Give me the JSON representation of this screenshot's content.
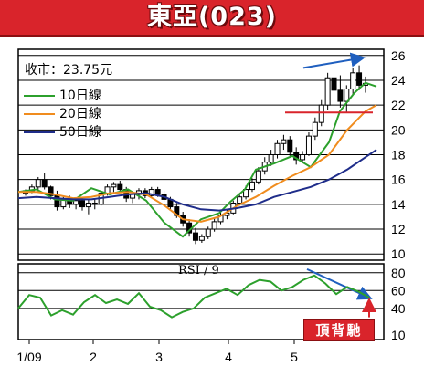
{
  "title": "東亞(023)",
  "price_label": "收市：23.75元",
  "badge": "頂背馳",
  "legend": [
    {
      "label": "10日線",
      "color": "#2ca02c"
    },
    {
      "label": "20日線",
      "color": "#f08c1e"
    },
    {
      "label": "50日線",
      "color": "#1f2d8a"
    }
  ],
  "rsi_label": "RSI / 9",
  "colors": {
    "title_bg": "#d9242b",
    "candle": "#000000",
    "resistance": "#d9242b",
    "trend_arrow": "#1f5fbf",
    "rsi_line": "#2ca02c"
  },
  "chart_data": [
    {
      "type": "candlestick",
      "x_tick_labels": [
        "1/09",
        "2",
        "3",
        "4",
        "5"
      ],
      "y_ticks": [
        10,
        12,
        14,
        16,
        18,
        20,
        22,
        24,
        26
      ],
      "ylim": [
        9.5,
        26.5
      ],
      "grid": "horizontal",
      "last_close": 23.75,
      "resistance_level": 21.4,
      "series": [
        {
          "name": "10日線",
          "color": "#2ca02c",
          "x": [
            0,
            5,
            10,
            15,
            20,
            25,
            30,
            35,
            40,
            45,
            50,
            55,
            58,
            62,
            65,
            70,
            75,
            80,
            85,
            88,
            92,
            95,
            98
          ],
          "y": [
            15.0,
            15.2,
            14.4,
            14.3,
            15.3,
            14.8,
            15.2,
            14.3,
            12.5,
            11.4,
            12.8,
            13.3,
            14.2,
            15.2,
            16.8,
            17.3,
            17.9,
            17.0,
            19.0,
            21.5,
            23.0,
            23.8,
            23.5
          ]
        },
        {
          "name": "20日線",
          "color": "#f08c1e",
          "x": [
            0,
            5,
            10,
            15,
            20,
            25,
            30,
            35,
            40,
            45,
            50,
            55,
            60,
            65,
            70,
            75,
            80,
            85,
            90,
            95,
            98
          ],
          "y": [
            15.0,
            15.0,
            14.8,
            14.5,
            14.6,
            14.9,
            15.0,
            14.8,
            13.9,
            12.8,
            12.6,
            13.0,
            13.9,
            14.6,
            15.5,
            16.3,
            17.0,
            18.0,
            20.0,
            21.5,
            22.0
          ]
        },
        {
          "name": "50日線",
          "color": "#1f2d8a",
          "x": [
            0,
            5,
            10,
            15,
            20,
            25,
            30,
            35,
            40,
            45,
            50,
            55,
            60,
            65,
            70,
            75,
            80,
            85,
            90,
            95,
            98
          ],
          "y": [
            14.5,
            14.6,
            14.5,
            14.4,
            14.4,
            14.6,
            14.8,
            14.9,
            14.6,
            14.0,
            13.6,
            13.5,
            13.7,
            14.0,
            14.6,
            15.0,
            15.4,
            16.0,
            16.8,
            17.8,
            18.4
          ]
        }
      ],
      "candles": [
        [
          0,
          14.9,
          15.2,
          14.7,
          15.1
        ],
        [
          1.4,
          15.1,
          15.6,
          14.9,
          15.4
        ],
        [
          2.8,
          15.4,
          16.2,
          15.2,
          16.0
        ],
        [
          4.2,
          16.0,
          16.5,
          15.2,
          15.4
        ],
        [
          5.6,
          15.4,
          15.5,
          14.4,
          14.7
        ],
        [
          7,
          14.7,
          15.1,
          13.5,
          13.8
        ],
        [
          8.4,
          13.8,
          14.6,
          13.6,
          14.4
        ],
        [
          9.8,
          14.4,
          14.7,
          13.7,
          14.0
        ],
        [
          11.2,
          14.0,
          14.5,
          13.6,
          14.3
        ],
        [
          12.6,
          14.3,
          14.6,
          13.5,
          13.8
        ],
        [
          14,
          13.8,
          14.4,
          13.2,
          14.1
        ],
        [
          15.4,
          14.1,
          14.5,
          13.6,
          14.0
        ],
        [
          16.8,
          14.0,
          15.1,
          13.9,
          14.9
        ],
        [
          18.2,
          14.9,
          15.6,
          14.7,
          15.4
        ],
        [
          19.6,
          15.4,
          15.8,
          15.0,
          15.6
        ],
        [
          21,
          15.6,
          15.9,
          15.1,
          15.2
        ],
        [
          22.4,
          15.2,
          15.4,
          14.2,
          14.5
        ],
        [
          23.8,
          14.5,
          15.0,
          14.1,
          14.8
        ],
        [
          25.2,
          14.8,
          15.3,
          14.4,
          15.1
        ],
        [
          26.6,
          15.1,
          15.3,
          14.5,
          14.7
        ],
        [
          28,
          14.7,
          15.4,
          14.6,
          15.2
        ],
        [
          29.4,
          15.2,
          15.4,
          14.6,
          14.8
        ],
        [
          30.8,
          14.8,
          15.1,
          14.2,
          14.4
        ],
        [
          32.2,
          14.4,
          14.6,
          13.6,
          13.8
        ],
        [
          33.6,
          13.8,
          14.1,
          12.9,
          13.1
        ],
        [
          35,
          13.1,
          13.4,
          12.2,
          12.5
        ],
        [
          36.4,
          12.5,
          12.8,
          11.4,
          11.7
        ],
        [
          37.8,
          11.7,
          12.1,
          10.8,
          11.1
        ],
        [
          39.2,
          11.1,
          11.6,
          10.9,
          11.4
        ],
        [
          40.6,
          11.4,
          12.2,
          11.2,
          12.0
        ],
        [
          42,
          12.0,
          12.9,
          11.8,
          12.6
        ],
        [
          43.4,
          12.6,
          13.4,
          12.4,
          13.1
        ],
        [
          44.8,
          13.1,
          13.6,
          12.8,
          13.3
        ],
        [
          46.2,
          13.3,
          14.3,
          13.2,
          14.1
        ],
        [
          47.6,
          14.1,
          14.9,
          13.9,
          14.6
        ],
        [
          49,
          14.6,
          15.5,
          14.4,
          15.2
        ],
        [
          50.4,
          15.2,
          16.1,
          15.0,
          15.8
        ],
        [
          51.8,
          15.8,
          17.0,
          15.6,
          16.7
        ],
        [
          53.2,
          16.7,
          17.8,
          16.4,
          17.4
        ],
        [
          54.6,
          17.4,
          18.4,
          17.1,
          18.0
        ],
        [
          56,
          18.0,
          19.2,
          17.7,
          18.9
        ],
        [
          57.4,
          18.9,
          19.6,
          18.4,
          19.2
        ],
        [
          58.8,
          19.2,
          19.5,
          17.9,
          18.2
        ],
        [
          60.2,
          18.2,
          18.6,
          17.2,
          17.6
        ],
        [
          61.6,
          17.6,
          18.3,
          17.4,
          18.0
        ],
        [
          63,
          18.0,
          19.8,
          17.9,
          19.5
        ],
        [
          64.4,
          19.5,
          21.0,
          19.2,
          20.6
        ],
        [
          65.8,
          20.6,
          22.4,
          20.3,
          22.0
        ],
        [
          67.2,
          22.0,
          24.6,
          21.6,
          24.2
        ],
        [
          68.6,
          24.2,
          25.0,
          22.8,
          23.2
        ],
        [
          70,
          23.2,
          24.4,
          21.8,
          22.3
        ],
        [
          71.4,
          22.3,
          23.6,
          21.4,
          23.3
        ],
        [
          72.8,
          23.3,
          25.0,
          22.9,
          24.6
        ],
        [
          74.2,
          24.6,
          25.2,
          23.2,
          23.6
        ],
        [
          75.6,
          23.6,
          24.3,
          23.0,
          23.75
        ]
      ]
    },
    {
      "type": "line",
      "title": "RSI / 9",
      "y_ticks": [
        10,
        40,
        60,
        80
      ],
      "ylim": [
        5,
        90
      ],
      "series": [
        {
          "name": "RSI / 9",
          "color": "#2ca02c",
          "x": [
            0,
            3,
            6,
            9,
            12,
            15,
            18,
            21,
            24,
            27,
            30,
            33,
            36,
            39,
            42,
            45,
            48,
            51,
            54,
            57,
            60,
            63,
            66,
            69,
            72,
            75,
            78,
            81,
            84,
            87,
            90,
            93,
            96
          ],
          "y": [
            40,
            55,
            52,
            32,
            38,
            33,
            47,
            55,
            46,
            50,
            45,
            57,
            42,
            38,
            30,
            36,
            40,
            52,
            57,
            62,
            55,
            66,
            72,
            70,
            60,
            64,
            72,
            77,
            68,
            56,
            64,
            59,
            52
          ]
        }
      ]
    }
  ]
}
